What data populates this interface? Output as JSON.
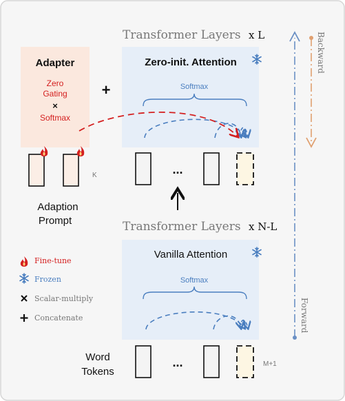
{
  "colors": {
    "panel_bg": "#f6f6f6",
    "panel_border": "#d6d6d6",
    "attention_bg": "#e6eef8",
    "adapter_bg": "#fbe8de",
    "prompt_token_fill": "#fbeee6",
    "frozen_blue": "#4a7ebf",
    "red": "#d42020",
    "orange": "#e0a070",
    "placeholder_fill": "#fdf6e3",
    "text_dark": "#111111",
    "text_gray": "#777777",
    "axis_blue": "#6a8fc4"
  },
  "top_block": {
    "title": "Transformer Layers",
    "multiplier": "x L",
    "attention_title": "Zero-init. Attention",
    "softmax": "Softmax",
    "frozen_icon": "snowflake-icon"
  },
  "adapter": {
    "title": "Adapter",
    "line1": "Zero",
    "line2": "Gating",
    "times": "×",
    "line3": "Softmax",
    "plus": "+"
  },
  "prompt": {
    "k_label": "K",
    "label_line1": "Adaption",
    "label_line2": "Prompt",
    "fine_tune_icon": "flame-icon"
  },
  "bottom_block": {
    "title": "Transformer Layers",
    "multiplier": "x N-L",
    "attention_title": "Vanilla Attention",
    "softmax": "Softmax",
    "frozen_icon": "snowflake-icon"
  },
  "word_tokens": {
    "label_line1": "Word",
    "label_line2": "Tokens",
    "m_label": "M+1",
    "ellipsis": "..."
  },
  "top_tokens": {
    "ellipsis": "..."
  },
  "legend": {
    "items": [
      {
        "icon": "flame-icon",
        "label": "Fine-tune"
      },
      {
        "icon": "snowflake-icon",
        "label": "Frozen"
      },
      {
        "icon": "cross-icon",
        "label": "Scalar-multiply"
      },
      {
        "icon": "plus-icon",
        "label": "Concatenate"
      }
    ]
  },
  "directions": {
    "backward": "Backward",
    "forward": "Forward"
  }
}
